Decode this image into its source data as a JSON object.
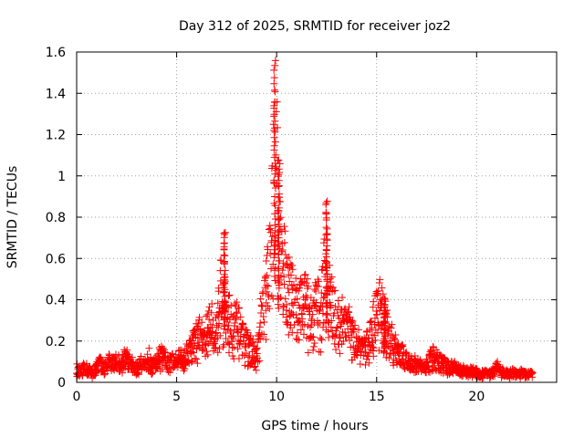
{
  "chart_data": {
    "type": "scatter",
    "title": "Day 312 of 2025, SRMTID for receiver joz2",
    "xlabel": "GPS time / hours",
    "ylabel": "SRMTID / TECUs",
    "xlim": [
      0,
      24
    ],
    "ylim": [
      0,
      1.6
    ],
    "x_ticks": [
      "0",
      "5",
      "10",
      "15",
      "20"
    ],
    "y_ticks": [
      "0",
      "0.2",
      "0.4",
      "0.6",
      "0.8",
      "1",
      "1.2",
      "1.4",
      "1.6"
    ],
    "grid": true,
    "marker": "+",
    "color": "#ff0000",
    "series": [
      {
        "name": "SRMTID",
        "x": [
          0.0,
          0.2,
          0.4,
          0.6,
          0.8,
          1.0,
          1.2,
          1.4,
          1.6,
          1.8,
          2.0,
          2.2,
          2.4,
          2.6,
          2.8,
          3.0,
          3.2,
          3.4,
          3.6,
          3.8,
          4.0,
          4.2,
          4.4,
          4.6,
          4.8,
          5.0,
          5.2,
          5.4,
          5.6,
          5.8,
          6.0,
          6.2,
          6.4,
          6.6,
          6.8,
          7.0,
          7.2,
          7.4,
          7.6,
          7.8,
          8.0,
          8.2,
          8.4,
          8.6,
          8.8,
          9.0,
          9.2,
          9.4,
          9.6,
          9.8,
          10.0,
          10.2,
          10.4,
          10.6,
          10.8,
          11.0,
          11.2,
          11.4,
          11.6,
          11.8,
          12.0,
          12.2,
          12.4,
          12.6,
          12.8,
          13.0,
          13.2,
          13.4,
          13.6,
          13.8,
          14.0,
          14.2,
          14.4,
          14.6,
          14.8,
          15.0,
          15.2,
          15.4,
          15.6,
          15.8,
          16.0,
          16.2,
          16.4,
          16.6,
          16.8,
          17.0,
          17.2,
          17.4,
          17.6,
          17.8,
          18.0,
          18.2,
          18.4,
          18.6,
          18.8,
          19.0,
          19.2,
          19.4,
          19.6,
          19.8,
          20.0,
          20.2,
          20.4,
          20.6,
          20.8,
          21.0,
          21.2,
          21.4,
          21.6,
          21.8,
          22.0,
          22.2,
          22.4,
          22.6,
          22.8
        ],
        "y": [
          0.07,
          0.05,
          0.08,
          0.06,
          0.05,
          0.08,
          0.1,
          0.07,
          0.11,
          0.09,
          0.12,
          0.08,
          0.14,
          0.1,
          0.09,
          0.07,
          0.11,
          0.09,
          0.13,
          0.08,
          0.1,
          0.14,
          0.12,
          0.09,
          0.11,
          0.1,
          0.13,
          0.12,
          0.16,
          0.19,
          0.22,
          0.25,
          0.2,
          0.3,
          0.28,
          0.26,
          0.45,
          0.36,
          0.33,
          0.28,
          0.3,
          0.25,
          0.2,
          0.18,
          0.16,
          0.12,
          0.3,
          0.4,
          0.55,
          0.85,
          1.25,
          0.7,
          0.55,
          0.48,
          0.45,
          0.4,
          0.38,
          0.42,
          0.35,
          0.3,
          0.4,
          0.35,
          0.55,
          0.45,
          0.38,
          0.33,
          0.3,
          0.36,
          0.28,
          0.22,
          0.2,
          0.18,
          0.16,
          0.22,
          0.28,
          0.35,
          0.38,
          0.3,
          0.24,
          0.2,
          0.17,
          0.15,
          0.12,
          0.1,
          0.11,
          0.09,
          0.08,
          0.07,
          0.1,
          0.14,
          0.12,
          0.1,
          0.09,
          0.08,
          0.08,
          0.07,
          0.06,
          0.06,
          0.05,
          0.06,
          0.05,
          0.04,
          0.05,
          0.04,
          0.05,
          0.08,
          0.06,
          0.05,
          0.04,
          0.05,
          0.04,
          0.05,
          0.04,
          0.04,
          0.04
        ],
        "peaks": [
          {
            "x": 7.4,
            "y": 0.73
          },
          {
            "x": 9.9,
            "y": 1.55
          },
          {
            "x": 10.1,
            "y": 1.02
          },
          {
            "x": 12.5,
            "y": 0.88
          },
          {
            "x": 15.4,
            "y": 0.4
          }
        ]
      }
    ]
  }
}
